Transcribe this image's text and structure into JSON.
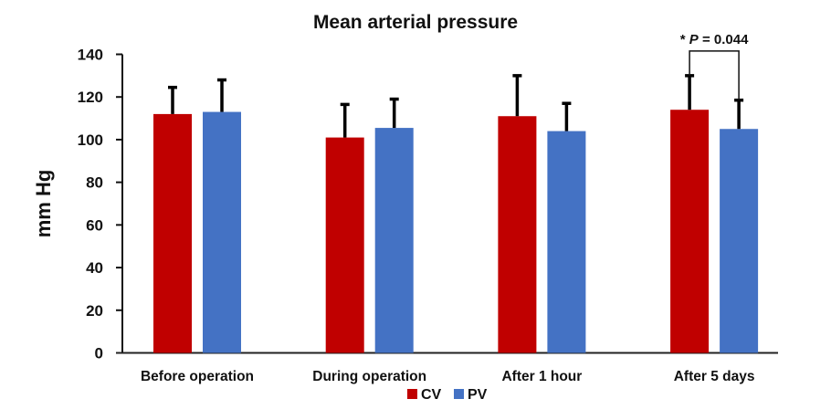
{
  "chart_data": {
    "type": "bar",
    "title": "Mean arterial pressure",
    "xlabel": "",
    "ylabel": "mm Hg",
    "ylim": [
      0,
      140
    ],
    "yticks": [
      0,
      20,
      40,
      60,
      80,
      100,
      120,
      140
    ],
    "grid": false,
    "categories": [
      "Before operation",
      "During operation",
      "After 1 hour",
      "After 5 days"
    ],
    "series": [
      {
        "name": "CV",
        "color": "#C00000",
        "values": [
          112,
          101,
          111,
          114
        ],
        "error_upper": [
          124.5,
          116.5,
          130,
          130
        ]
      },
      {
        "name": "PV",
        "color": "#4472C4",
        "values": [
          113,
          105.5,
          104,
          105
        ],
        "error_upper": [
          128,
          119,
          117,
          118.5
        ]
      }
    ],
    "legend": {
      "position": "bottom",
      "entries": [
        "CV",
        "PV"
      ]
    },
    "annotations": [
      {
        "category": "After 5 days",
        "type": "significance-bracket",
        "between": [
          "CV",
          "PV"
        ],
        "star": "*",
        "p_label": "P",
        "p_value_text": " = 0.044"
      }
    ]
  }
}
